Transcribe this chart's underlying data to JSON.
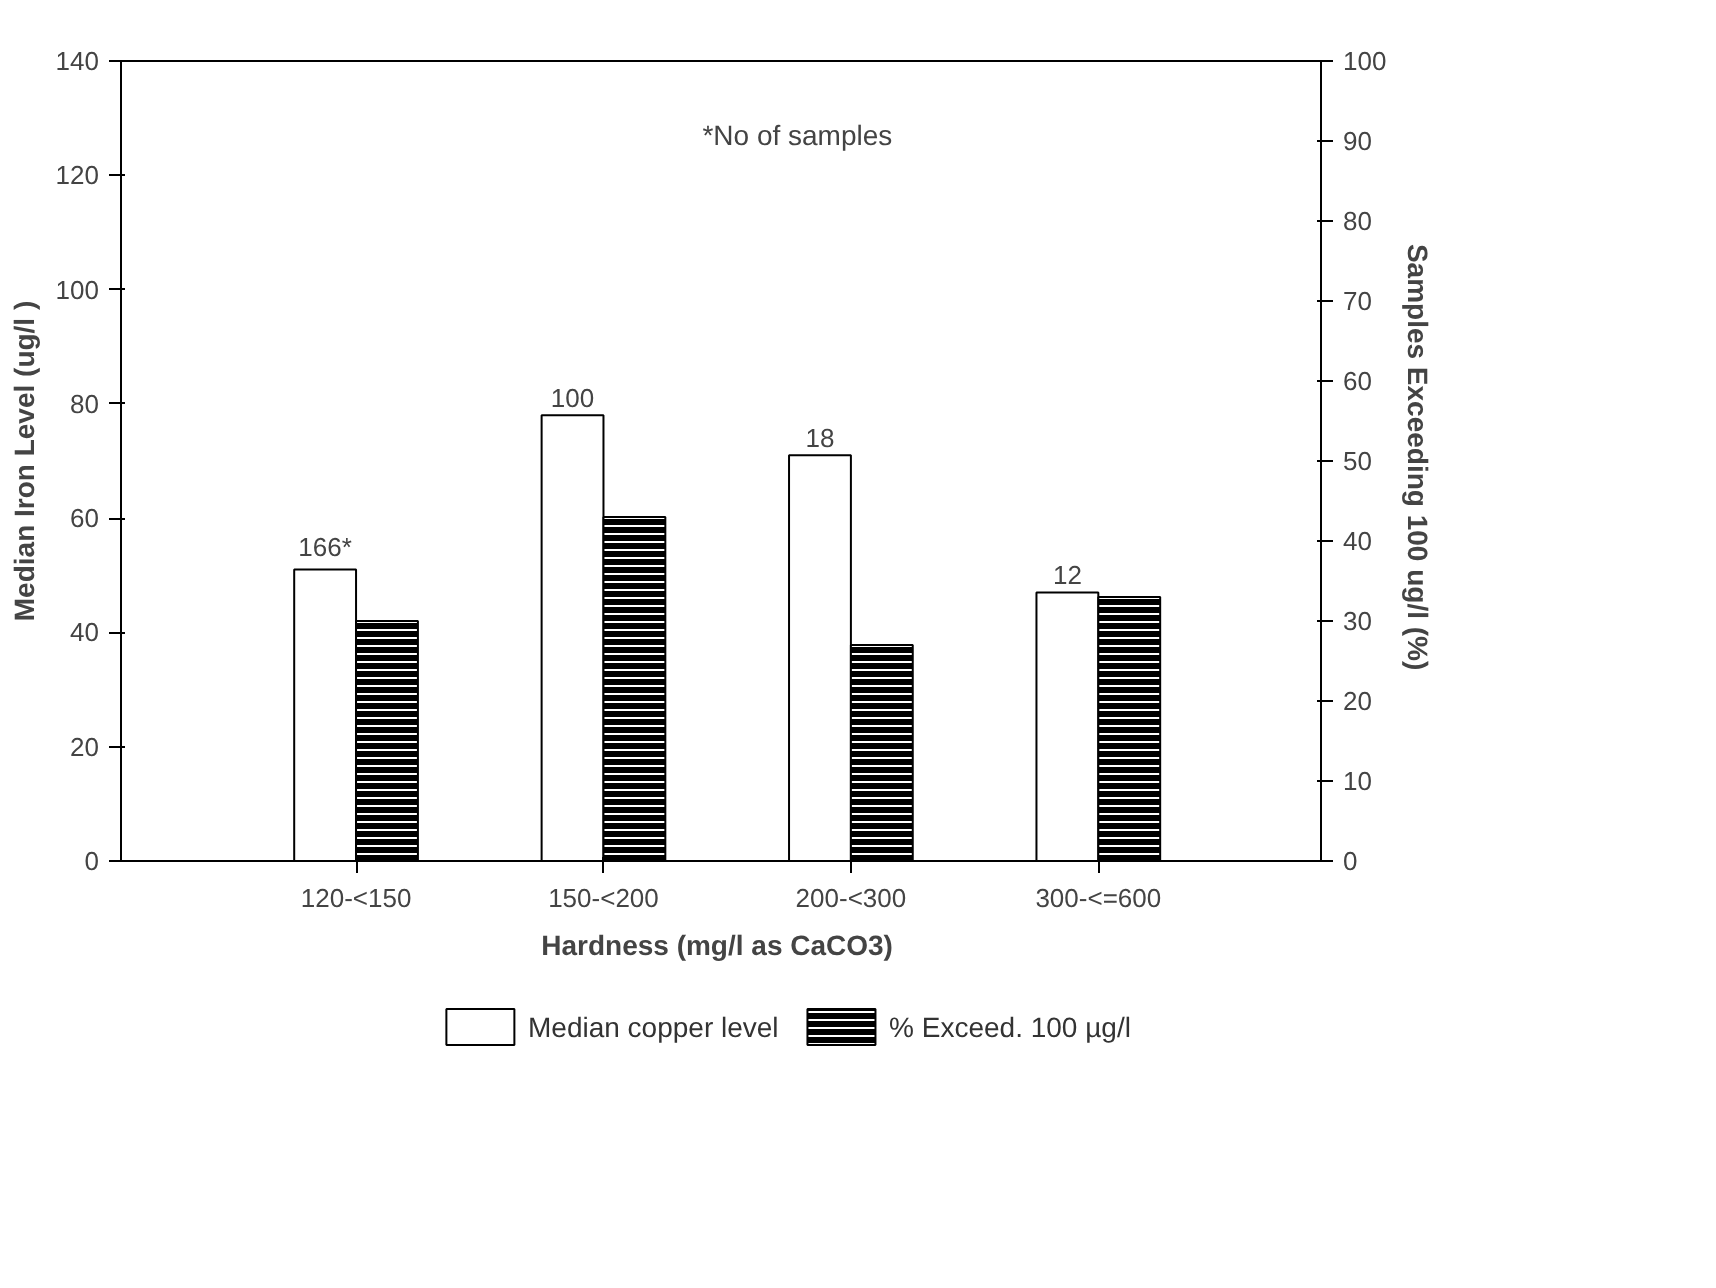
{
  "chart_data": {
    "type": "bar",
    "xlabel": "Hardness (mg/l  as CaCO3)",
    "ylabel": "Median Iron Level (ug/l )",
    "y2label": "Samples Exceeding 100 ug/l  (%)",
    "categories": [
      "120-<150",
      "150-<200",
      "200-<300",
      "300-<=600"
    ],
    "series": [
      {
        "name": "Median copper level",
        "color": "#ffffff",
        "values": [
          51,
          78,
          71,
          47
        ]
      },
      {
        "name": "% Exceed. 100 µg/l",
        "color": "#000000",
        "values": [
          30,
          43,
          27,
          33
        ],
        "axis": "y2"
      }
    ],
    "ylim": [
      0,
      140
    ],
    "yticks": [
      0,
      20,
      40,
      60,
      80,
      100,
      120,
      140
    ],
    "y2lim": [
      0,
      100
    ],
    "y2ticks": [
      0,
      10,
      20,
      30,
      40,
      50,
      60,
      70,
      80,
      90,
      100
    ],
    "annotations": [
      {
        "text": "166*",
        "x": "120-<150",
        "y": 51
      },
      {
        "text": "100",
        "x": "150-<200",
        "y": 78
      },
      {
        "text": "18",
        "x": "200-<300",
        "y": 71
      },
      {
        "text": "12",
        "x": "300-<=600",
        "y": 47
      },
      "*No of samples"
    ],
    "grid": false,
    "legend": "bottom"
  }
}
